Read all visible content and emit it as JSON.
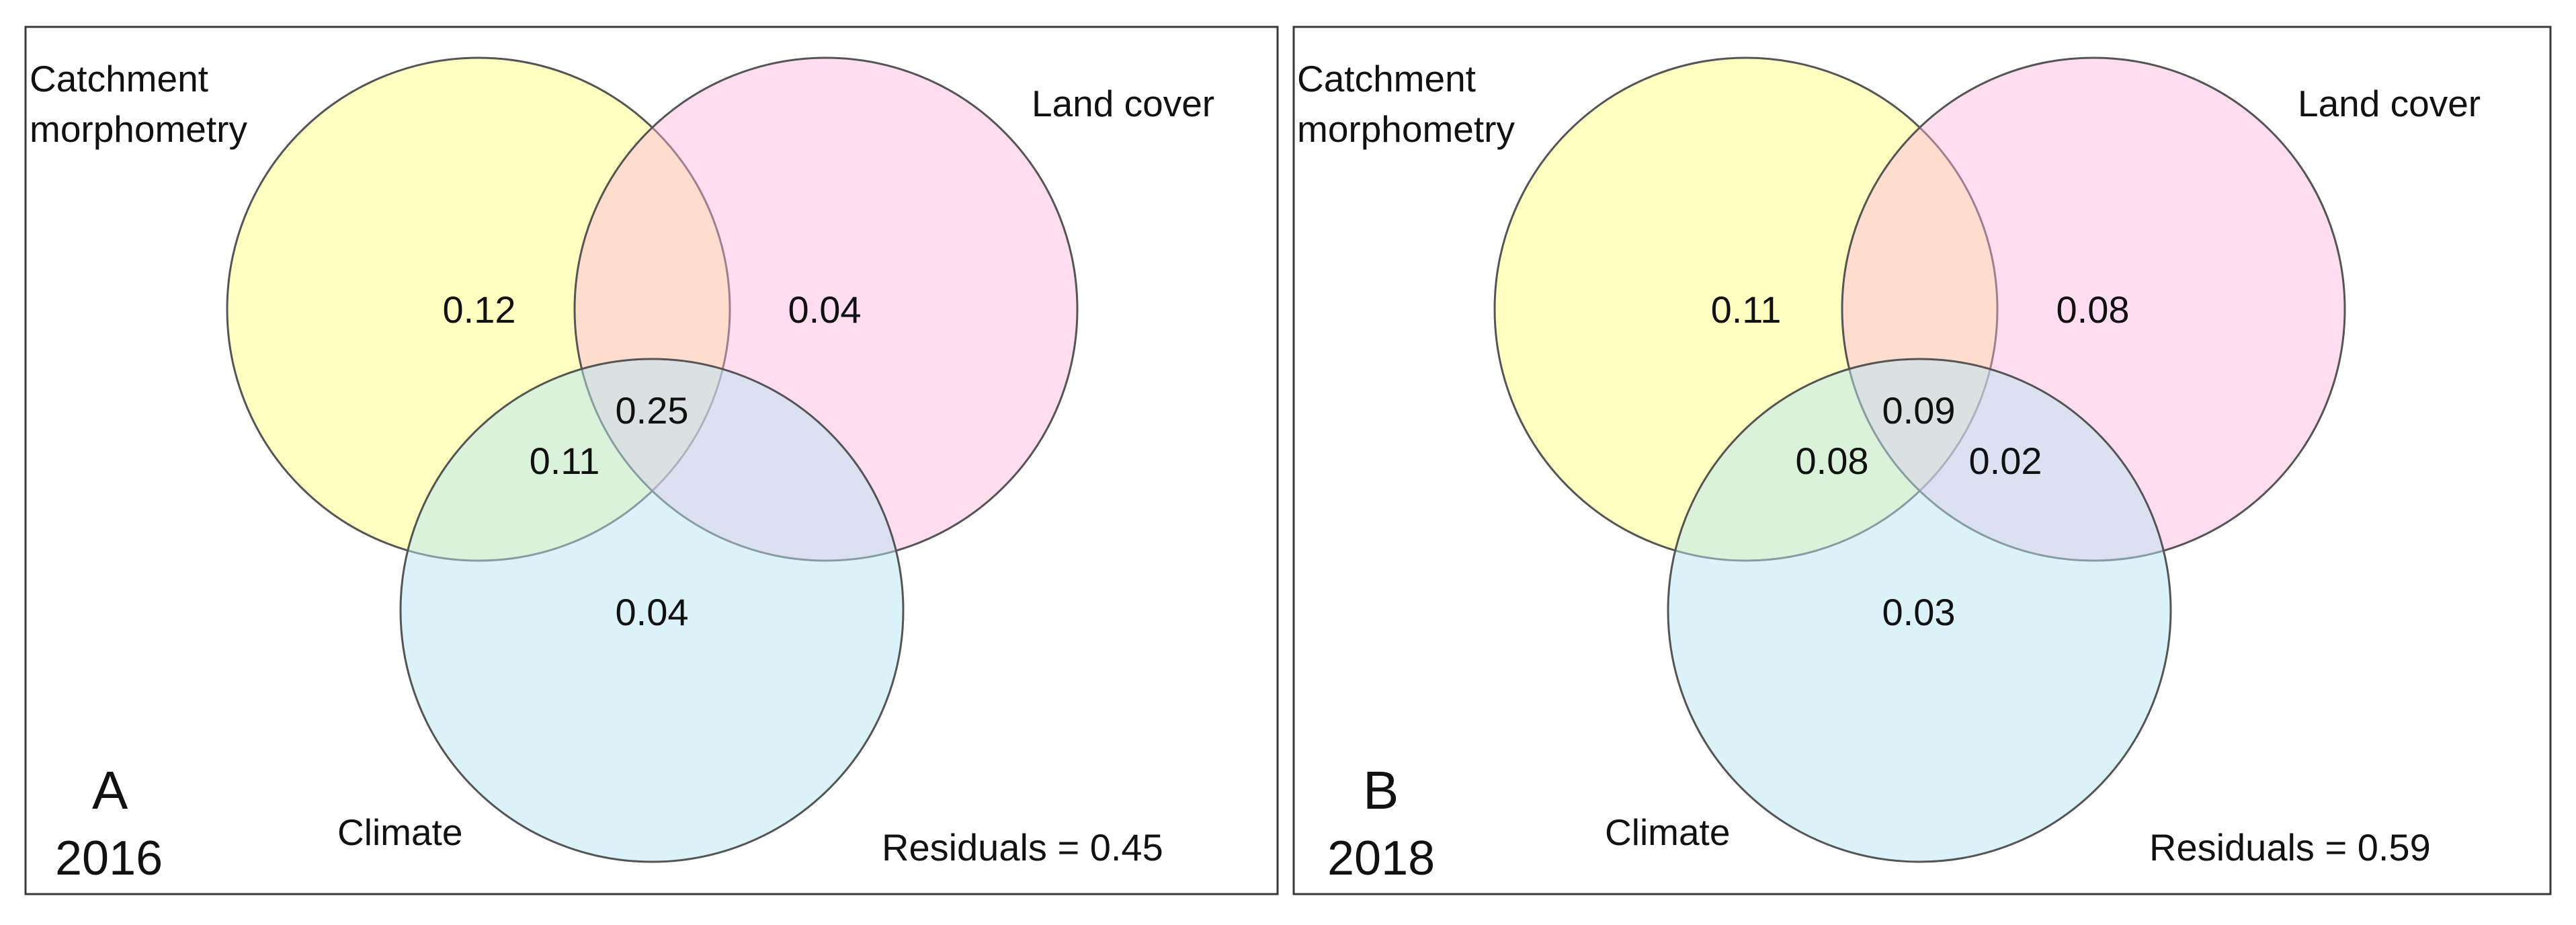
{
  "colors": {
    "catchment": "#ffff99",
    "land_cover": "#ffb3de",
    "climate": "#b8e6f2",
    "frame": "#3a3a3a",
    "circle_stroke": "#555555",
    "text": "#111111"
  },
  "panels": [
    {
      "letter": "A",
      "year": "2016",
      "sets": {
        "catchment_line1": "Catchment",
        "catchment_line2": "morphometry",
        "land_cover": "Land cover",
        "climate": "Climate"
      },
      "regions": {
        "catchment_only": "0.12",
        "land_cover_only": "0.04",
        "climate_only": "0.04",
        "catchment_climate": "0.11",
        "all_three": "0.25"
      },
      "residuals": "Residuals = 0.45"
    },
    {
      "letter": "B",
      "year": "2018",
      "sets": {
        "catchment_line1": "Catchment",
        "catchment_line2": "morphometry",
        "land_cover": "Land cover",
        "climate": "Climate"
      },
      "regions": {
        "catchment_only": "0.11",
        "land_cover_only": "0.08",
        "climate_only": "0.03",
        "catchment_climate": "0.08",
        "land_cover_climate": "0.02",
        "all_three": "0.09"
      },
      "residuals": "Residuals = 0.59"
    }
  ]
}
